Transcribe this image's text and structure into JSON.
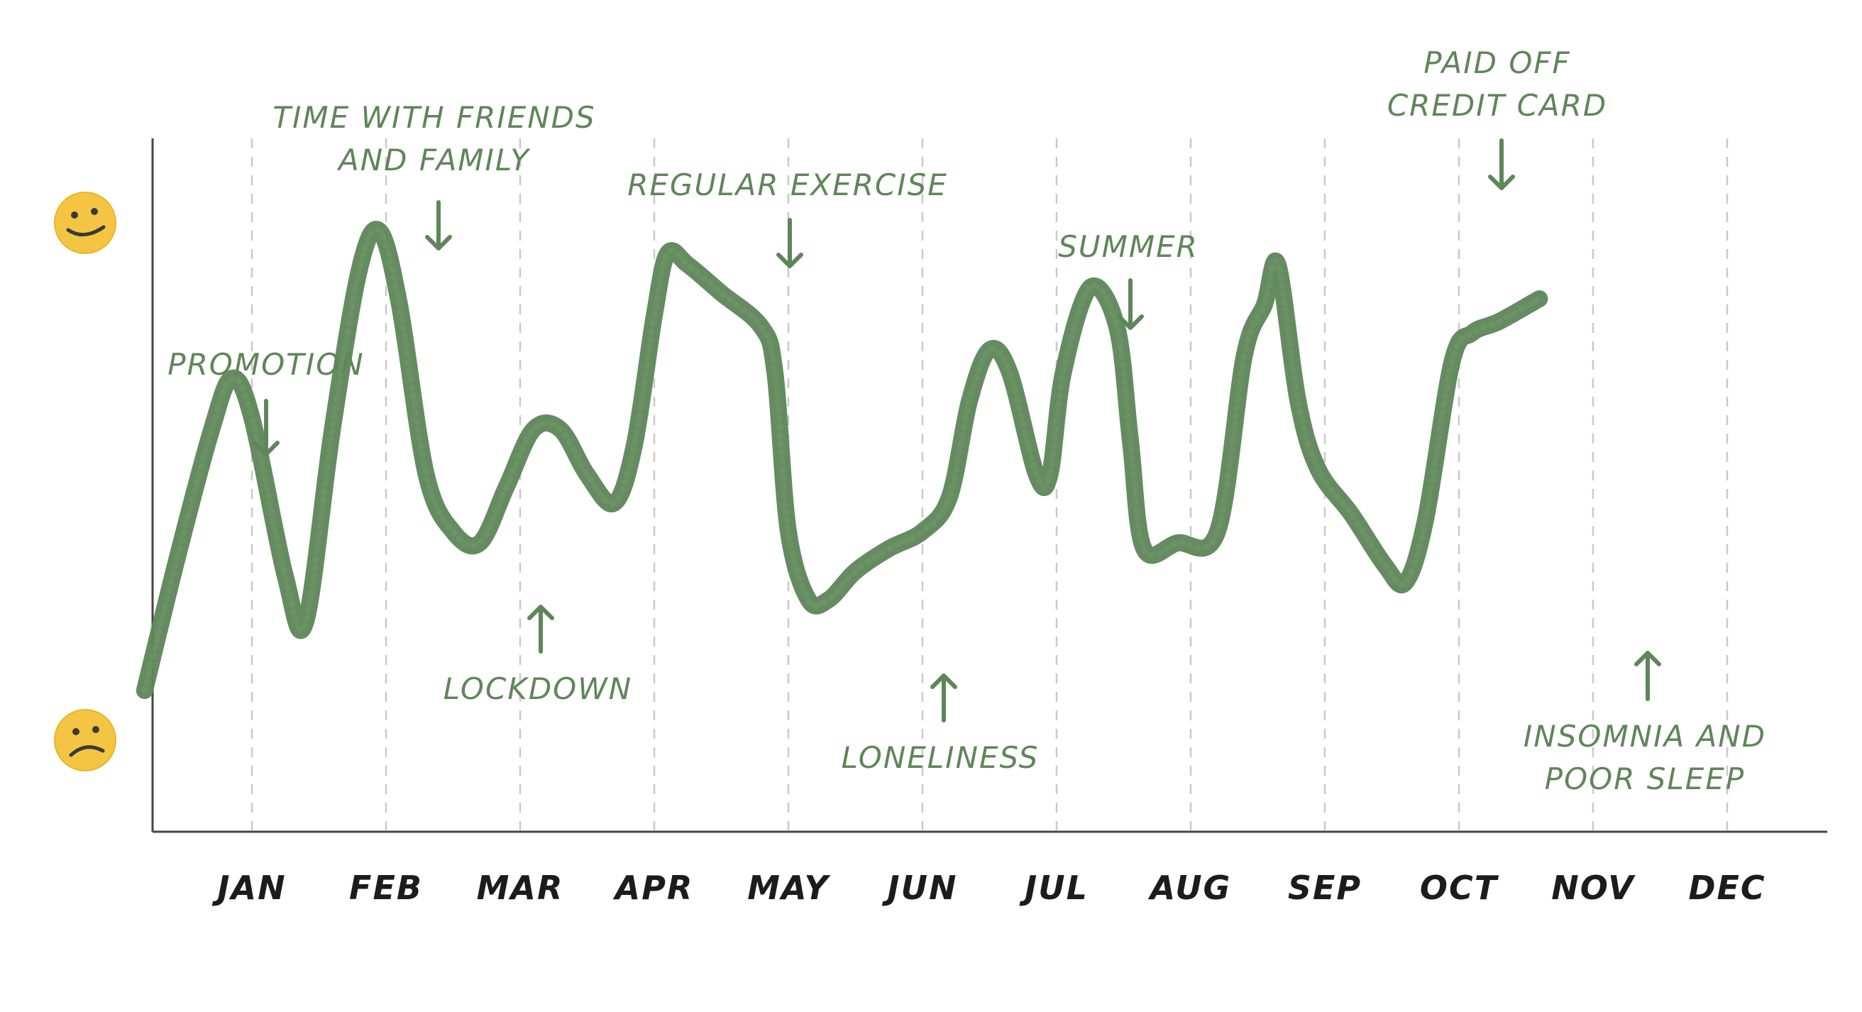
{
  "chart_data": {
    "type": "line",
    "title": "",
    "xlabel": "",
    "ylabel": "",
    "categories": [
      "JAN",
      "FEB",
      "MAR",
      "APR",
      "MAY",
      "JUN",
      "JUL",
      "AUG",
      "SEP",
      "OCT",
      "NOV",
      "DEC"
    ],
    "x_range": [
      0.2,
      12.6
    ],
    "ylim": [
      0,
      100
    ],
    "y_scale_icons": {
      "top": "happy-face-icon",
      "bottom": "sad-face-icon"
    },
    "grid": "vertical-dashed",
    "line_color": "#5f8659",
    "series": [
      {
        "points": [
          [
            0.2,
            14
          ],
          [
            0.45,
            38
          ],
          [
            0.7,
            60
          ],
          [
            0.85,
            69
          ],
          [
            1.0,
            62
          ],
          [
            1.25,
            34
          ],
          [
            1.4,
            26
          ],
          [
            1.6,
            60
          ],
          [
            1.8,
            88
          ],
          [
            1.95,
            95
          ],
          [
            2.1,
            82
          ],
          [
            2.3,
            52
          ],
          [
            2.5,
            42
          ],
          [
            2.7,
            40
          ],
          [
            2.9,
            50
          ],
          [
            3.1,
            60
          ],
          [
            3.3,
            60
          ],
          [
            3.5,
            52
          ],
          [
            3.7,
            47
          ],
          [
            3.85,
            57
          ],
          [
            4.0,
            80
          ],
          [
            4.1,
            91
          ],
          [
            4.25,
            89
          ],
          [
            4.5,
            84
          ],
          [
            4.8,
            78
          ],
          [
            4.9,
            70
          ],
          [
            5.0,
            42
          ],
          [
            5.15,
            30
          ],
          [
            5.3,
            30
          ],
          [
            5.5,
            35
          ],
          [
            5.75,
            39
          ],
          [
            6.0,
            42
          ],
          [
            6.2,
            48
          ],
          [
            6.35,
            65
          ],
          [
            6.5,
            74
          ],
          [
            6.65,
            70
          ],
          [
            6.85,
            52
          ],
          [
            6.95,
            52
          ],
          [
            7.05,
            70
          ],
          [
            7.25,
            85
          ],
          [
            7.45,
            78
          ],
          [
            7.55,
            58
          ],
          [
            7.65,
            39
          ],
          [
            7.9,
            40
          ],
          [
            8.2,
            42
          ],
          [
            8.4,
            73
          ],
          [
            8.55,
            82
          ],
          [
            8.65,
            89
          ],
          [
            8.8,
            65
          ],
          [
            8.95,
            53
          ],
          [
            9.2,
            45
          ],
          [
            9.45,
            36
          ],
          [
            9.6,
            33
          ],
          [
            9.75,
            44
          ],
          [
            9.95,
            72
          ],
          [
            10.1,
            77
          ],
          [
            10.3,
            79
          ],
          [
            10.6,
            83
          ]
        ]
      }
    ],
    "annotations": [
      {
        "label_lines": [
          "PROMOTION"
        ],
        "direction": "down"
      },
      {
        "label_lines": [
          "TIME WITH FRIENDS",
          "AND FAMILY"
        ],
        "direction": "down"
      },
      {
        "label_lines": [
          "LOCKDOWN"
        ],
        "direction": "up"
      },
      {
        "label_lines": [
          "REGULAR EXERCISE"
        ],
        "direction": "down"
      },
      {
        "label_lines": [
          "LONELINESS"
        ],
        "direction": "up"
      },
      {
        "label_lines": [
          "SUMMER"
        ],
        "direction": "down"
      },
      {
        "label_lines": [
          "PAID OFF",
          "CREDIT CARD"
        ],
        "direction": "down"
      },
      {
        "label_lines": [
          "INSOMNIA AND",
          "POOR SLEEP"
        ],
        "direction": "up"
      }
    ]
  }
}
